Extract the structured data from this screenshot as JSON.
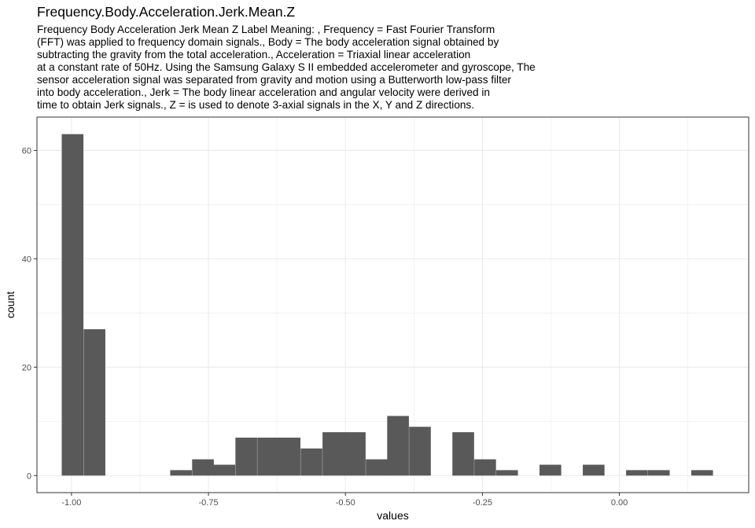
{
  "title": "Frequency.Body.Acceleration.Jerk.Mean.Z",
  "subtitle": "Frequency Body Acceleration Jerk Mean Z Label Meaning: , Frequency = Fast Fourier Transform\n(FFT) was applied to frequency domain signals., Body = The body acceleration signal obtained by\nsubtracting the gravity from the total acceleration., Acceleration = Triaxial linear acceleration\nat a constant rate of 50Hz. Using the Samsung Galaxy S II embedded accelerometer and gyroscope, The\nsensor acceleration signal was separated from gravity and motion using a Butterworth low-pass filter\ninto body acceleration., Jerk = The body linear acceleration and angular velocity were derived in\ntime to obtain Jerk signals., Z = is used to denote 3-axial signals in the X, Y and Z directions.",
  "colors": {
    "bar": "#595959",
    "grid": "#ebebeb",
    "panel_border": "#333333",
    "tick_text": "#4d4d4d"
  },
  "chart_data": {
    "type": "bar",
    "xlabel": "values",
    "ylabel": "count",
    "bin_width": 0.0396,
    "bins_x": [
      -0.998,
      -0.958,
      -0.919,
      -0.879,
      -0.839,
      -0.8,
      -0.76,
      -0.721,
      -0.681,
      -0.641,
      -0.602,
      -0.562,
      -0.522,
      -0.483,
      -0.443,
      -0.404,
      -0.364,
      -0.324,
      -0.285,
      -0.245,
      -0.205,
      -0.166,
      -0.126,
      -0.087,
      -0.047,
      -0.007,
      0.032,
      0.072,
      0.112,
      0.151,
      0.191
    ],
    "counts": [
      63,
      27,
      0,
      0,
      0,
      1,
      3,
      2,
      7,
      7,
      7,
      5,
      8,
      8,
      3,
      11,
      9,
      0,
      8,
      3,
      1,
      0,
      2,
      0,
      2,
      0,
      1,
      1,
      0,
      1
    ],
    "xlim": [
      -1.063,
      0.236
    ],
    "ylim": [
      -3.15,
      66.15
    ],
    "x_ticks": [
      -1.0,
      -0.75,
      -0.5,
      -0.25,
      0.0
    ],
    "x_tick_labels": [
      "-1.00",
      "-0.75",
      "-0.50",
      "-0.25",
      "0.00"
    ],
    "y_ticks": [
      0,
      20,
      40,
      60
    ],
    "y_tick_labels": [
      "0",
      "20",
      "40",
      "60"
    ],
    "grid": true,
    "legend": "none"
  }
}
